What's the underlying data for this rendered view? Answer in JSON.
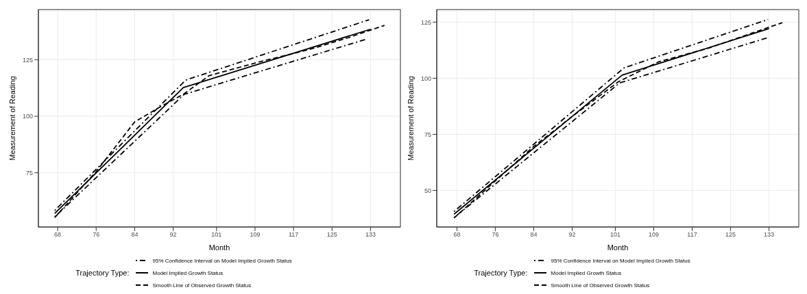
{
  "chart_data": [
    {
      "type": "line",
      "xlabel": "Month",
      "ylabel": "Measurement of Reading",
      "legend_title": "Trajectory Type:",
      "legend": "bottom",
      "grid": true,
      "xlim": [
        64,
        139.2
      ],
      "ylim": [
        51,
        147.2
      ],
      "xticks": [
        68,
        76,
        84,
        92,
        101,
        109,
        117,
        125,
        133
      ],
      "yticks": [
        75,
        100,
        125
      ],
      "series": [
        {
          "name": "95% Confidence Interval on Model Implied Growth Status",
          "color": "#000000",
          "line_style": "dashdot",
          "x": [
            67.4,
            94.6,
            132.7
          ],
          "values": [
            58.3,
            116,
            142.7
          ]
        },
        {
          "color": "#000000",
          "line_style": "dashdot",
          "x": [
            67.4,
            94.3,
            132.1
          ],
          "values": [
            55.5,
            109.7,
            134.1
          ]
        },
        {
          "name": "Model Implied Growth Status",
          "color": "#000000",
          "line_style": "solid",
          "x": [
            67.4,
            94.1,
            133
          ],
          "values": [
            57,
            112.7,
            138.5
          ]
        },
        {
          "name": "Smooth Line of Observed Growth Status",
          "color": "#000000",
          "line_style": "dashed",
          "x": [
            67.4,
            76,
            84,
            90,
            94.1,
            99.5,
            110,
            120.4,
            128,
            135.9
          ],
          "values": [
            55.2,
            75.5,
            97.5,
            105,
            109.7,
            118,
            124.1,
            129.6,
            134.5,
            140.2
          ]
        }
      ]
    },
    {
      "type": "line",
      "xlabel": "Month",
      "ylabel": "Measurement of Reading",
      "legend_title": "Trajectory Type:",
      "legend": "bottom",
      "grid": true,
      "xlim": [
        63.8,
        139.2
      ],
      "ylim": [
        33.7,
        130.6
      ],
      "xticks": [
        68,
        76,
        84,
        92,
        101,
        109,
        117,
        125,
        133
      ],
      "yticks": [
        50,
        75,
        100,
        125
      ],
      "series": [
        {
          "name": "95% Confidence Interval on Model Implied Growth Status",
          "color": "#000000",
          "line_style": "dashdot",
          "x": [
            67.4,
            102.8,
            132.8
          ],
          "values": [
            40.6,
            104.6,
            126.2
          ]
        },
        {
          "color": "#000000",
          "line_style": "dashdot",
          "x": [
            67.4,
            101.9,
            132.8
          ],
          "values": [
            37.9,
            97.9,
            118.1
          ]
        },
        {
          "name": "Model Implied Growth Status",
          "color": "#000000",
          "line_style": "solid",
          "x": [
            67.4,
            102.4,
            133
          ],
          "values": [
            39.4,
            101.4,
            122.1
          ]
        },
        {
          "name": "Smooth Line of Observed Growth Status",
          "color": "#000000",
          "line_style": "dashed",
          "x": [
            67.4,
            84,
            92.3,
            101.6,
            110,
            120.4,
            135.8
          ],
          "values": [
            37.7,
            69.6,
            83.4,
            98.4,
            107.3,
            113.4,
            124.8
          ]
        }
      ]
    }
  ]
}
